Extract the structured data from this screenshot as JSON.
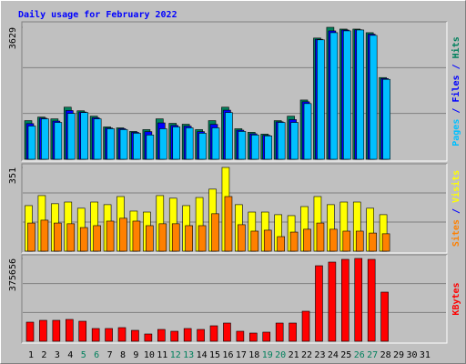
{
  "chart_data": [
    {
      "type": "bar",
      "title": "Daily usage for February 2022",
      "legend_separator": "/",
      "ylim": [
        0,
        3629
      ],
      "yticks": [
        3629
      ],
      "series": [
        {
          "name": "Hits",
          "color": "#00805c",
          "values": [
            1062,
            1160,
            1111,
            1432,
            1333,
            1185,
            889,
            864,
            765,
            815,
            1111,
            988,
            963,
            815,
            1062,
            1432,
            839,
            741,
            691,
            1062,
            1185,
            1629,
            3333,
            3629,
            3580,
            3580,
            3481,
            2247,
            null,
            null,
            null
          ]
        },
        {
          "name": "Files",
          "color": "#0000ff",
          "values": [
            980,
            1130,
            1050,
            1340,
            1300,
            1140,
            860,
            840,
            740,
            760,
            1000,
            930,
            910,
            760,
            960,
            1350,
            800,
            700,
            660,
            1030,
            1090,
            1580,
            3300,
            3530,
            3555,
            3560,
            3440,
            2220,
            null,
            null,
            null
          ]
        },
        {
          "name": "Pages",
          "color": "#00c0ff",
          "values": [
            914,
            1111,
            1012,
            1259,
            1284,
            1111,
            839,
            815,
            716,
            667,
            839,
            889,
            864,
            716,
            864,
            1284,
            765,
            667,
            642,
            1012,
            1012,
            1531,
            3284,
            3481,
            3531,
            3555,
            3407,
            2197,
            null,
            null,
            null
          ]
        }
      ]
    },
    {
      "type": "bar",
      "legend_separator": "/",
      "ylim": [
        0,
        351
      ],
      "yticks": [
        351
      ],
      "series": [
        {
          "name": "Visits",
          "color": "#ffff00",
          "values": [
            191,
            233,
            199,
            206,
            180,
            206,
            195,
            229,
            168,
            164,
            233,
            222,
            191,
            225,
            260,
            351,
            195,
            164,
            164,
            153,
            149,
            187,
            229,
            195,
            206,
            206,
            180,
            153,
            null,
            null,
            null
          ]
        },
        {
          "name": "Sites",
          "color": "#ff8000",
          "values": [
            118,
            130,
            118,
            115,
            99,
            107,
            126,
            138,
            126,
            107,
            115,
            115,
            107,
            107,
            157,
            229,
            111,
            84,
            88,
            61,
            80,
            92,
            118,
            92,
            84,
            84,
            76,
            73,
            null,
            null,
            null
          ]
        }
      ]
    },
    {
      "type": "bar",
      "ylim": [
        0,
        375656
      ],
      "yticks": [
        375656
      ],
      "categories": [
        "1",
        "2",
        "3",
        "4",
        "5",
        "6",
        "7",
        "8",
        "9",
        "10",
        "11",
        "12",
        "13",
        "14",
        "15",
        "16",
        "17",
        "18",
        "19",
        "20",
        "21",
        "22",
        "23",
        "24",
        "25",
        "26",
        "27",
        "28",
        "29",
        "30",
        "31"
      ],
      "category_colors": [
        "#000000",
        "#000000",
        "#000000",
        "#000000",
        "#00805c",
        "#00805c",
        "#000000",
        "#000000",
        "#000000",
        "#000000",
        "#000000",
        "#00805c",
        "#00805c",
        "#000000",
        "#000000",
        "#000000",
        "#000000",
        "#000000",
        "#00805c",
        "#00805c",
        "#000000",
        "#000000",
        "#000000",
        "#000000",
        "#000000",
        "#00805c",
        "#00805c",
        "#000000",
        "#000000",
        "#000000",
        "#000000"
      ],
      "series": [
        {
          "name": "KBytes",
          "color": "#ff0000",
          "values": [
            86688,
            94944,
            94944,
            99072,
            90816,
            57792,
            57792,
            61920,
            49536,
            33024,
            53664,
            45408,
            57792,
            53664,
            70176,
            82560,
            45408,
            37152,
            41280,
            82560,
            82560,
            136224,
            342624,
            359136,
            371520,
            375656,
            371520,
            222912,
            null,
            null,
            null
          ]
        }
      ]
    }
  ]
}
